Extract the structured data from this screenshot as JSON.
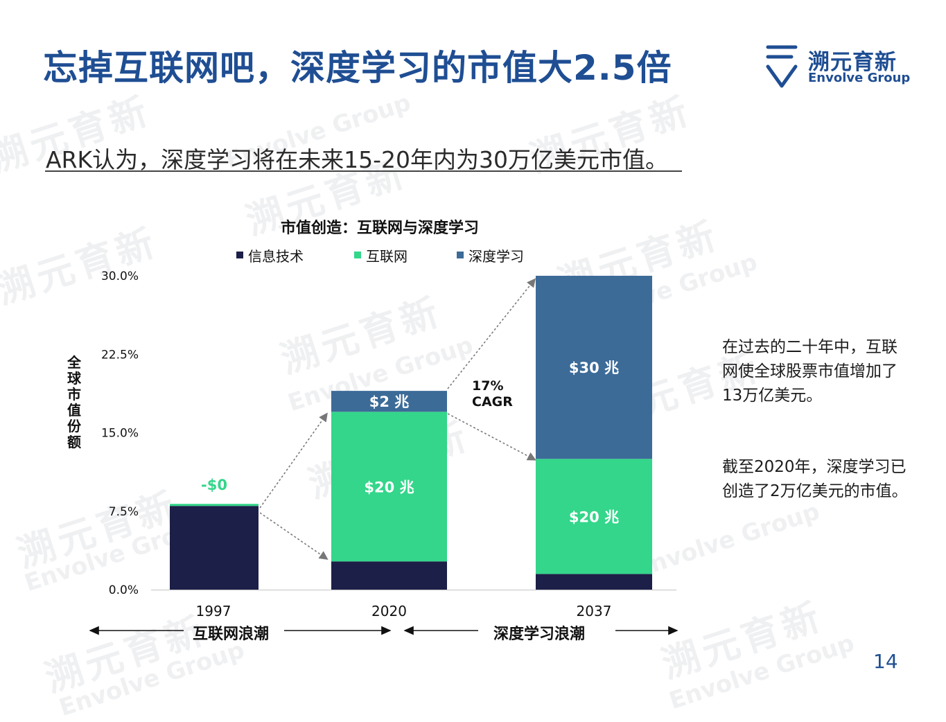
{
  "title": "忘掉互联网吧，深度学习的市值大2.5倍",
  "logo": {
    "cn": "溯元育新",
    "en": "Envolve Group"
  },
  "subtitle": "ARK认为，深度学习将在未来15-20年内为30万亿美元市值。",
  "notes": [
    "在过去的二十年中，互联网使全球股票市值增加了13万亿美元。",
    "截至2020年，深度学习已创造了2万亿美元的市值。"
  ],
  "page_number": "14",
  "watermark": {
    "cn": "溯元育新",
    "en": "Envolve Group"
  },
  "colors": {
    "accent": "#1f4e93",
    "info_tech": "#1c1f47",
    "internet": "#33d68a",
    "deep_learning": "#3c6b98"
  },
  "chart_data": {
    "type": "bar",
    "stacked": true,
    "title": "市值创造：互联网与深度学习",
    "ylabel": "全球市值份额",
    "ylim": [
      0,
      30
    ],
    "yticks": [
      "30.0%",
      "22.5%",
      "15.0%",
      "7.5%",
      "0.0%"
    ],
    "categories": [
      "1997",
      "2020",
      "2037"
    ],
    "series": [
      {
        "name": "信息技术",
        "values": [
          8.0,
          2.7,
          1.5
        ]
      },
      {
        "name": "互联网",
        "values": [
          0.2,
          14.3,
          11.0
        ]
      },
      {
        "name": "深度学习",
        "values": [
          0,
          2.0,
          17.5
        ]
      }
    ],
    "bar_labels": [
      {
        "category": "1997",
        "series": "互联网",
        "text": "-$0"
      },
      {
        "category": "2020",
        "series": "互联网",
        "text": "$20 兆"
      },
      {
        "category": "2020",
        "series": "深度学习",
        "text": "$2 兆"
      },
      {
        "category": "2037",
        "series": "互联网",
        "text": "$20 兆"
      },
      {
        "category": "2037",
        "series": "深度学习",
        "text": "$30 兆"
      }
    ],
    "annotation": {
      "line1": "17%",
      "line2": "CAGR"
    },
    "eras": [
      "互联网浪潮",
      "深度学习浪潮"
    ],
    "legend_position": "top"
  }
}
